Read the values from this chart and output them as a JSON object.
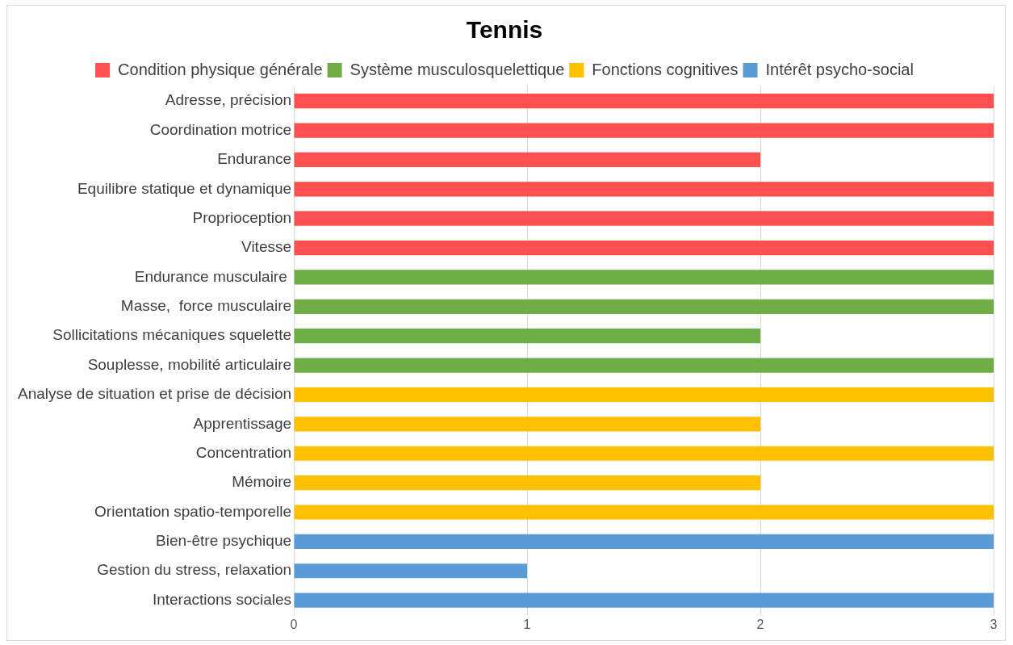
{
  "chart_data": {
    "type": "bar",
    "orientation": "horizontal",
    "title": "Tennis",
    "categories": [
      "Adresse, précision",
      "Coordination motrice",
      "Endurance",
      "Equilibre statique et dynamique",
      "Proprioception",
      "Vitesse",
      "Endurance musculaire ",
      "Masse,  force musculaire",
      "Sollicitations mécaniques squelette",
      "Souplesse, mobilité articulaire",
      "Analyse de situation et prise de décision",
      "Apprentissage",
      "Concentration",
      "Mémoire",
      "Orientation spatio-temporelle",
      "Bien-être psychique",
      "Gestion du stress, relaxation",
      "Interactions sociales"
    ],
    "series": [
      {
        "name": "Condition physique générale",
        "color": "#ff5050",
        "values": [
          3,
          3,
          2,
          3,
          3,
          3,
          null,
          null,
          null,
          null,
          null,
          null,
          null,
          null,
          null,
          null,
          null,
          null
        ]
      },
      {
        "name": "Système musculosquelettique",
        "color": "#70ad47",
        "values": [
          null,
          null,
          null,
          null,
          null,
          null,
          3,
          3,
          2,
          3,
          null,
          null,
          null,
          null,
          null,
          null,
          null,
          null
        ]
      },
      {
        "name": "Fonctions cognitives",
        "color": "#ffc000",
        "values": [
          null,
          null,
          null,
          null,
          null,
          null,
          null,
          null,
          null,
          null,
          3,
          2,
          3,
          2,
          3,
          null,
          null,
          null
        ]
      },
      {
        "name": "Intérêt psycho-social",
        "color": "#5b9bd5",
        "values": [
          null,
          null,
          null,
          null,
          null,
          null,
          null,
          null,
          null,
          null,
          null,
          null,
          null,
          null,
          null,
          3,
          1,
          3
        ]
      }
    ],
    "xlim": [
      0,
      3
    ],
    "xticks": [
      0,
      1,
      2,
      3
    ],
    "grid": "x",
    "legend": "top"
  }
}
